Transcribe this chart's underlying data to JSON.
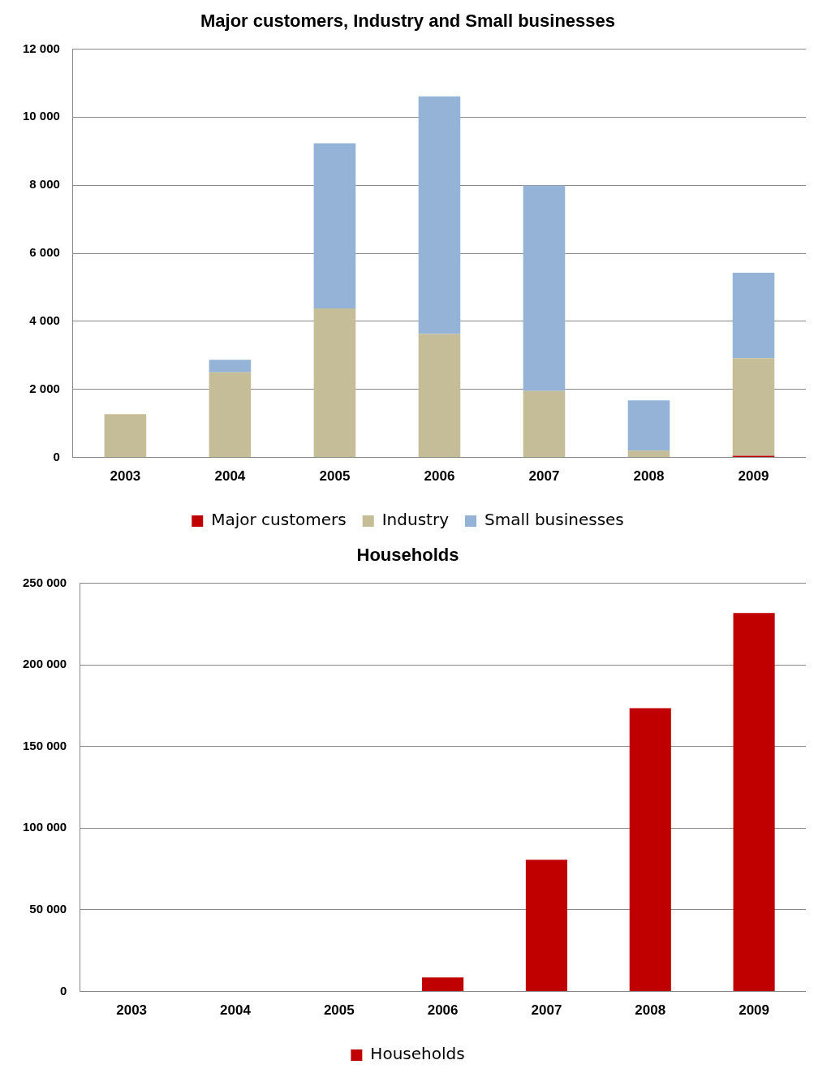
{
  "chart_data": [
    {
      "type": "bar",
      "title": "Major customers, Industry and Small businesses",
      "categories": [
        "2003",
        "2004",
        "2005",
        "2006",
        "2007",
        "2008",
        "2009"
      ],
      "stacked": true,
      "series": [
        {
          "name": "Major customers",
          "color": "#c00000",
          "values": [
            0,
            0,
            0,
            0,
            0,
            0,
            50
          ]
        },
        {
          "name": "Industry",
          "color": "#c4bd97",
          "values": [
            1270,
            2500,
            4380,
            3630,
            1950,
            200,
            2870
          ]
        },
        {
          "name": "Small businesses",
          "color": "#95b3d7",
          "values": [
            0,
            370,
            4850,
            6980,
            6040,
            1480,
            2510
          ]
        }
      ],
      "ylim": [
        0,
        12000
      ],
      "yticks": [
        0,
        {
          "value": 2000,
          "label": "2 000"
        },
        {
          "value": 4000,
          "label": "4 000"
        },
        {
          "value": 6000,
          "label": "6 000"
        },
        {
          "value": 8000,
          "label": "8 000"
        },
        {
          "value": 10000,
          "label": "10 000"
        },
        {
          "value": 12000,
          "label": "12 000"
        }
      ],
      "grid": "y",
      "legend": "bottom"
    },
    {
      "type": "bar",
      "title": "Households",
      "categories": [
        "2003",
        "2004",
        "2005",
        "2006",
        "2007",
        "2008",
        "2009"
      ],
      "series": [
        {
          "name": "Households",
          "color": "#c00000",
          "values": [
            0,
            0,
            0,
            8600,
            80600,
            173400,
            231700
          ]
        }
      ],
      "ylim": [
        0,
        250000
      ],
      "yticks": [
        0,
        {
          "value": 50000,
          "label": "50 000"
        },
        {
          "value": 100000,
          "label": "100 000"
        },
        {
          "value": 150000,
          "label": "150 000"
        },
        {
          "value": 200000,
          "label": "200 000"
        },
        {
          "value": 250000,
          "label": "250 000"
        }
      ],
      "grid": "y",
      "legend": "bottom"
    }
  ]
}
